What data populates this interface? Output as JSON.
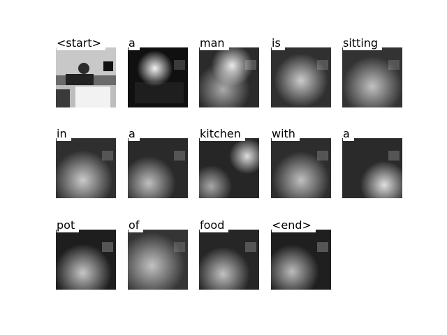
{
  "figure": {
    "words": [
      "<start>",
      "a",
      "man",
      "is",
      "sitting",
      "in",
      "a",
      "kitchen",
      "with",
      "a",
      "pot",
      "of",
      "food",
      "<end>"
    ]
  },
  "colors": {
    "background": "#ffffff",
    "text": "#000000",
    "attention_glow": "#ffffff"
  }
}
